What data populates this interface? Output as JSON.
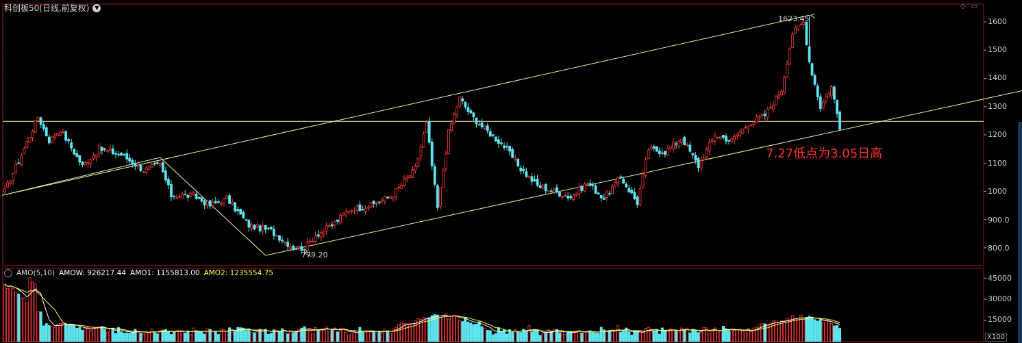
{
  "header": {
    "title": "科创板50(日线,前复权)"
  },
  "annotation": "7.27低点为3.05日高",
  "labels": {
    "high": "1623.45",
    "low": "779.20"
  },
  "sub_header": {
    "name": "AMO(5,10)",
    "amow": "AMOW: 926217.44",
    "amo1": "AMO1: 1155813.00",
    "amo2": "AMO2: 1235554.75"
  },
  "price_axis": [
    "1600",
    "1500",
    "1400",
    "1300",
    "1200",
    "1100",
    "1000",
    "900.0",
    "800.0"
  ],
  "volume_axis": [
    "45000",
    "30000",
    "15000"
  ],
  "volume_unit": "X100",
  "colors": {
    "up": "#ff3a3a",
    "down": "#5ee6f0",
    "trendline": "#f2f2a0",
    "amo1": "#ffffff",
    "amo2": "#ffff40",
    "amow": "#ffffff",
    "grid": "#8a1010"
  },
  "chart_data": {
    "type": "candlestick",
    "title": "科创板50(日线,前复权)",
    "ylim": [
      760,
      1650
    ],
    "volume_ylim": [
      0,
      48000
    ],
    "anchors": [
      {
        "i": 0,
        "p": 1000
      },
      {
        "i": 6,
        "p": 1130
      },
      {
        "i": 12,
        "p": 1265
      },
      {
        "i": 16,
        "p": 1180
      },
      {
        "i": 20,
        "p": 1220
      },
      {
        "i": 28,
        "p": 1090
      },
      {
        "i": 34,
        "p": 1150
      },
      {
        "i": 42,
        "p": 1130
      },
      {
        "i": 50,
        "p": 1075
      },
      {
        "i": 56,
        "p": 1095
      },
      {
        "i": 60,
        "p": 985
      },
      {
        "i": 68,
        "p": 985
      },
      {
        "i": 74,
        "p": 950
      },
      {
        "i": 80,
        "p": 975
      },
      {
        "i": 88,
        "p": 880
      },
      {
        "i": 96,
        "p": 860
      },
      {
        "i": 104,
        "p": 800
      },
      {
        "i": 108,
        "p": 800
      },
      {
        "i": 112,
        "p": 845
      },
      {
        "i": 118,
        "p": 880
      },
      {
        "i": 124,
        "p": 935
      },
      {
        "i": 132,
        "p": 950
      },
      {
        "i": 140,
        "p": 990
      },
      {
        "i": 148,
        "p": 1080
      },
      {
        "i": 152,
        "p": 1240
      },
      {
        "i": 156,
        "p": 940
      },
      {
        "i": 160,
        "p": 1210
      },
      {
        "i": 164,
        "p": 1330
      },
      {
        "i": 168,
        "p": 1270
      },
      {
        "i": 172,
        "p": 1230
      },
      {
        "i": 180,
        "p": 1160
      },
      {
        "i": 186,
        "p": 1080
      },
      {
        "i": 192,
        "p": 1020
      },
      {
        "i": 198,
        "p": 1000
      },
      {
        "i": 204,
        "p": 980
      },
      {
        "i": 210,
        "p": 1030
      },
      {
        "i": 216,
        "p": 975
      },
      {
        "i": 222,
        "p": 1050
      },
      {
        "i": 228,
        "p": 960
      },
      {
        "i": 232,
        "p": 1150
      },
      {
        "i": 238,
        "p": 1140
      },
      {
        "i": 244,
        "p": 1190
      },
      {
        "i": 250,
        "p": 1090
      },
      {
        "i": 256,
        "p": 1200
      },
      {
        "i": 262,
        "p": 1180
      },
      {
        "i": 268,
        "p": 1240
      },
      {
        "i": 274,
        "p": 1270
      },
      {
        "i": 280,
        "p": 1360
      },
      {
        "i": 284,
        "p": 1560
      },
      {
        "i": 288,
        "p": 1600
      },
      {
        "i": 290,
        "p": 1460
      },
      {
        "i": 294,
        "p": 1300
      },
      {
        "i": 298,
        "p": 1370
      },
      {
        "i": 301,
        "p": 1230
      }
    ],
    "high": {
      "i": 290,
      "p": 1623.45
    },
    "low": {
      "i": 108,
      "p": 779.2
    },
    "horizontal_line": 1248,
    "channel_upper": [
      {
        "i": -1,
        "p": 986
      },
      {
        "i": 290,
        "p": 1623.45
      }
    ],
    "channel_mid": [
      {
        "i": -1,
        "p": 986
      },
      {
        "i": 56,
        "p": 1120
      },
      {
        "i": 94,
        "p": 773
      }
    ],
    "channel_lower": [
      {
        "i": 94,
        "p": 773
      },
      {
        "i": 373,
        "p": 1370
      }
    ]
  }
}
